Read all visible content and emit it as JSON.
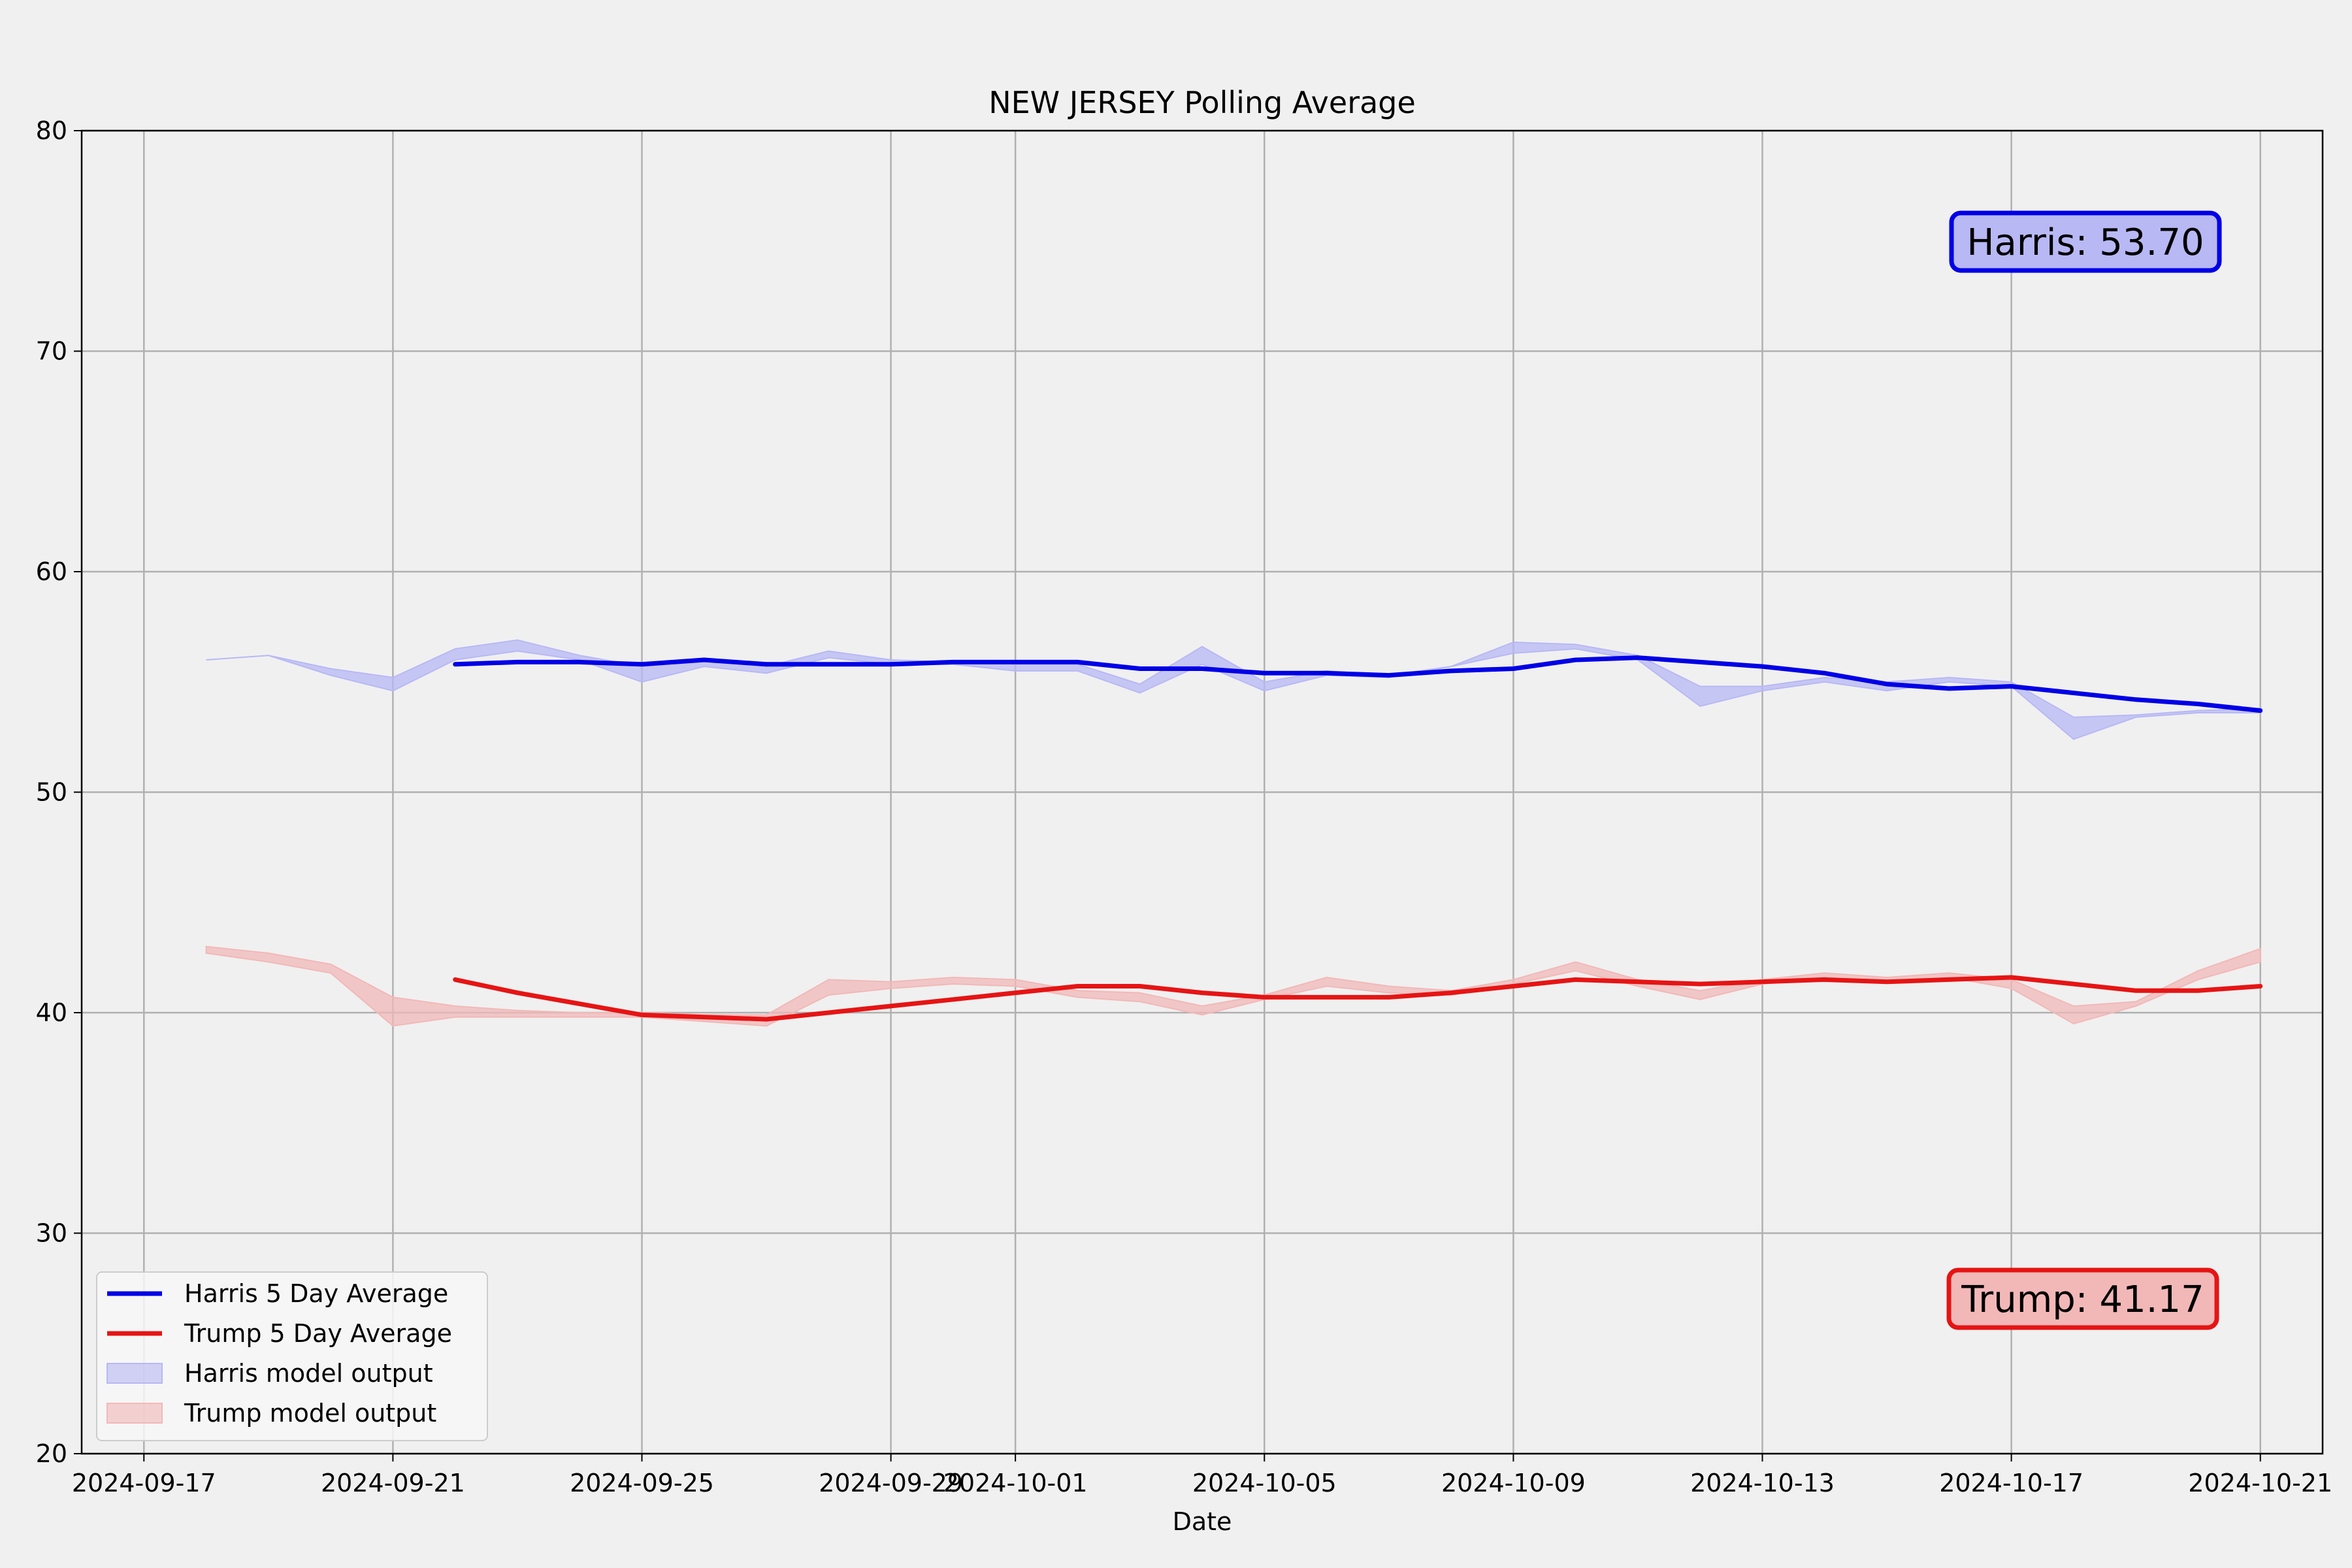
{
  "colors": {
    "background": "#f0f0f0",
    "harris_line": "#0000e6",
    "trump_line": "#e61414",
    "harris_fill": "#b8b8f5",
    "trump_fill": "#f2b8b8",
    "grid": "#b0b0b0"
  },
  "chart_data": {
    "type": "line",
    "title": "NEW JERSEY Polling Average",
    "xlabel": "Date",
    "ylabel": "",
    "xlim": [
      "2024-09-16",
      "2024-10-22"
    ],
    "ylim": [
      20,
      80
    ],
    "grid": true,
    "legend_position": "lower-left",
    "xticks": [
      "2024-09-17",
      "2024-09-21",
      "2024-09-25",
      "2024-09-29",
      "2024-10-01",
      "2024-10-05",
      "2024-10-09",
      "2024-10-13",
      "2024-10-17",
      "2024-10-21"
    ],
    "yticks": [
      20,
      30,
      40,
      50,
      60,
      70,
      80
    ],
    "legend": [
      {
        "label": "Harris 5 Day Average",
        "kind": "line",
        "color": "#0000e6"
      },
      {
        "label": "Trump 5 Day Average",
        "kind": "line",
        "color": "#e61414"
      },
      {
        "label": "Harris model output",
        "kind": "fill",
        "color": "#b8b8f5"
      },
      {
        "label": "Trump model output",
        "kind": "fill",
        "color": "#f2b8b8"
      }
    ],
    "series": [
      {
        "name": "Harris 5 Day Average",
        "kind": "line",
        "color": "#0000e6",
        "x": [
          "2024-09-22",
          "2024-09-23",
          "2024-09-24",
          "2024-09-25",
          "2024-09-26",
          "2024-09-27",
          "2024-09-28",
          "2024-09-29",
          "2024-09-30",
          "2024-10-01",
          "2024-10-02",
          "2024-10-03",
          "2024-10-04",
          "2024-10-05",
          "2024-10-06",
          "2024-10-07",
          "2024-10-08",
          "2024-10-09",
          "2024-10-10",
          "2024-10-11",
          "2024-10-12",
          "2024-10-13",
          "2024-10-14",
          "2024-10-15",
          "2024-10-16",
          "2024-10-17",
          "2024-10-18",
          "2024-10-19",
          "2024-10-20",
          "2024-10-21"
        ],
        "y": [
          55.8,
          55.9,
          55.9,
          55.8,
          56.0,
          55.8,
          55.8,
          55.8,
          55.9,
          55.9,
          55.9,
          55.6,
          55.6,
          55.4,
          55.4,
          55.3,
          55.5,
          55.6,
          56.0,
          56.1,
          55.9,
          55.7,
          55.4,
          54.9,
          54.7,
          54.8,
          54.5,
          54.2,
          54.0,
          53.7
        ]
      },
      {
        "name": "Trump 5 Day Average",
        "kind": "line",
        "color": "#e61414",
        "x": [
          "2024-09-22",
          "2024-09-23",
          "2024-09-24",
          "2024-09-25",
          "2024-09-26",
          "2024-09-27",
          "2024-09-28",
          "2024-09-29",
          "2024-09-30",
          "2024-10-01",
          "2024-10-02",
          "2024-10-03",
          "2024-10-04",
          "2024-10-05",
          "2024-10-06",
          "2024-10-07",
          "2024-10-08",
          "2024-10-09",
          "2024-10-10",
          "2024-10-11",
          "2024-10-12",
          "2024-10-13",
          "2024-10-14",
          "2024-10-15",
          "2024-10-16",
          "2024-10-17",
          "2024-10-18",
          "2024-10-19",
          "2024-10-20",
          "2024-10-21"
        ],
        "y": [
          41.5,
          40.9,
          40.4,
          39.9,
          39.8,
          39.7,
          40.0,
          40.3,
          40.6,
          40.9,
          41.2,
          41.2,
          40.9,
          40.7,
          40.7,
          40.7,
          40.9,
          41.2,
          41.5,
          41.4,
          41.3,
          41.4,
          41.5,
          41.4,
          41.5,
          41.6,
          41.3,
          41.0,
          41.0,
          41.2
        ]
      },
      {
        "name": "Harris model output",
        "kind": "band",
        "color": "#b8b8f5",
        "x": [
          "2024-09-18",
          "2024-09-19",
          "2024-09-20",
          "2024-09-21",
          "2024-09-22",
          "2024-09-23",
          "2024-09-24",
          "2024-09-25",
          "2024-09-26",
          "2024-09-27",
          "2024-09-28",
          "2024-09-29",
          "2024-09-30",
          "2024-10-01",
          "2024-10-02",
          "2024-10-03",
          "2024-10-04",
          "2024-10-05",
          "2024-10-06",
          "2024-10-07",
          "2024-10-08",
          "2024-10-09",
          "2024-10-10",
          "2024-10-11",
          "2024-10-12",
          "2024-10-13",
          "2024-10-14",
          "2024-10-15",
          "2024-10-16",
          "2024-10-17",
          "2024-10-18",
          "2024-10-19",
          "2024-10-20",
          "2024-10-21"
        ],
        "upper": [
          56.0,
          56.2,
          55.6,
          55.2,
          56.5,
          56.9,
          56.2,
          55.7,
          56.0,
          55.7,
          56.4,
          56.0,
          55.9,
          55.8,
          55.8,
          54.9,
          56.6,
          55.0,
          55.5,
          55.3,
          55.7,
          56.8,
          56.7,
          56.2,
          54.8,
          54.8,
          55.2,
          55.0,
          55.2,
          55.0,
          53.4,
          53.5,
          53.7,
          53.8
        ],
        "lower": [
          56.0,
          56.2,
          55.3,
          54.6,
          56.0,
          56.4,
          56.0,
          55.0,
          55.7,
          55.4,
          56.1,
          55.8,
          55.8,
          55.5,
          55.5,
          54.5,
          55.8,
          54.6,
          55.3,
          55.2,
          55.7,
          56.3,
          56.5,
          56.0,
          53.9,
          54.6,
          55.0,
          54.6,
          55.0,
          54.8,
          52.4,
          53.4,
          53.6,
          53.6
        ]
      },
      {
        "name": "Trump model output",
        "kind": "band",
        "color": "#f2b8b8",
        "x": [
          "2024-09-18",
          "2024-09-19",
          "2024-09-20",
          "2024-09-21",
          "2024-09-22",
          "2024-09-23",
          "2024-09-24",
          "2024-09-25",
          "2024-09-26",
          "2024-09-27",
          "2024-09-28",
          "2024-09-29",
          "2024-09-30",
          "2024-10-01",
          "2024-10-02",
          "2024-10-03",
          "2024-10-04",
          "2024-10-05",
          "2024-10-06",
          "2024-10-07",
          "2024-10-08",
          "2024-10-09",
          "2024-10-10",
          "2024-10-11",
          "2024-10-12",
          "2024-10-13",
          "2024-10-14",
          "2024-10-15",
          "2024-10-16",
          "2024-10-17",
          "2024-10-18",
          "2024-10-19",
          "2024-10-20",
          "2024-10-21"
        ],
        "upper": [
          43.0,
          42.7,
          42.2,
          40.7,
          40.3,
          40.1,
          40.0,
          40.0,
          39.9,
          39.9,
          41.5,
          41.4,
          41.6,
          41.5,
          41.0,
          40.9,
          40.3,
          40.8,
          41.6,
          41.2,
          41.0,
          41.5,
          42.3,
          41.5,
          41.0,
          41.5,
          41.8,
          41.6,
          41.8,
          41.5,
          40.3,
          40.5,
          41.9,
          42.9
        ],
        "lower": [
          42.7,
          42.3,
          41.8,
          39.4,
          39.8,
          39.8,
          39.8,
          39.8,
          39.6,
          39.4,
          40.8,
          41.1,
          41.3,
          41.2,
          40.7,
          40.5,
          39.9,
          40.6,
          41.2,
          40.9,
          40.8,
          41.3,
          41.9,
          41.2,
          40.6,
          41.3,
          41.6,
          41.4,
          41.6,
          41.1,
          39.5,
          40.3,
          41.5,
          42.3
        ]
      }
    ],
    "annotations": [
      {
        "text": "Harris: 53.70",
        "position": "upper-right",
        "color": "#0000e6",
        "fill": "#b8b8f5"
      },
      {
        "text": "Trump: 41.17",
        "position": "lower-right",
        "color": "#e61414",
        "fill": "#f2b8b8"
      }
    ]
  }
}
